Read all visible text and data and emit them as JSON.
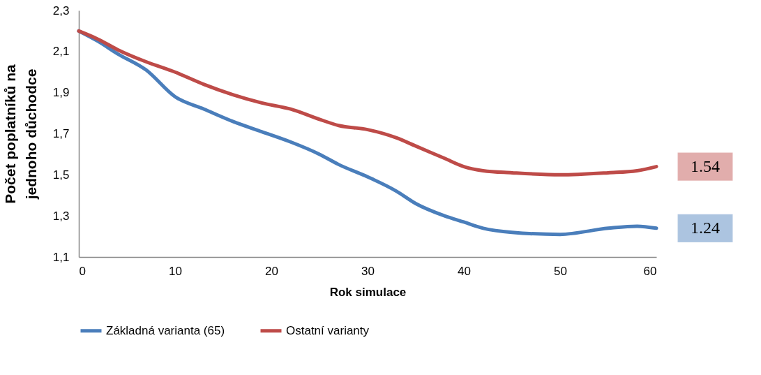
{
  "chart_data": {
    "type": "line",
    "xlabel": "Rok simulace",
    "ylabel": "Počet poplatníků na\njednoho důchodce",
    "x": [
      0,
      2,
      4,
      7,
      10,
      13,
      16,
      19,
      22,
      25,
      27,
      30,
      33,
      35,
      38,
      40,
      42,
      45,
      50,
      55,
      58,
      60
    ],
    "series": [
      {
        "name": "Základná varianta (65)",
        "color": "#4a7ebb",
        "values": [
          2.2,
          2.15,
          2.09,
          2.01,
          1.88,
          1.82,
          1.76,
          1.71,
          1.66,
          1.6,
          1.55,
          1.49,
          1.42,
          1.36,
          1.3,
          1.27,
          1.24,
          1.22,
          1.21,
          1.24,
          1.25,
          1.24
        ]
      },
      {
        "name": "Ostatní varianty",
        "color": "#be4b48",
        "values": [
          2.2,
          2.16,
          2.11,
          2.05,
          2.0,
          1.94,
          1.89,
          1.85,
          1.82,
          1.77,
          1.74,
          1.72,
          1.68,
          1.64,
          1.58,
          1.54,
          1.52,
          1.51,
          1.5,
          1.51,
          1.52,
          1.54
        ]
      }
    ],
    "xlim": [
      0,
      60
    ],
    "xticks": [
      0,
      10,
      20,
      30,
      40,
      50,
      60
    ],
    "ylim": [
      1.1,
      2.3
    ],
    "yticks": [
      {
        "value": 1.1,
        "label": "1,1"
      },
      {
        "value": 1.3,
        "label": "1,3"
      },
      {
        "value": 1.5,
        "label": "1,5"
      },
      {
        "value": 1.7,
        "label": "1,7"
      },
      {
        "value": 1.9,
        "label": "1,9"
      },
      {
        "value": 2.1,
        "label": "2,1"
      },
      {
        "value": 2.3,
        "label": "2,3"
      }
    ],
    "grid": false,
    "legend": "bottom",
    "marker": "none",
    "line_style": "solid",
    "annotations": [
      {
        "text": "1.54",
        "x": 60,
        "y": 1.54
      },
      {
        "text": "1.24",
        "x": 60,
        "y": 1.24
      }
    ]
  }
}
